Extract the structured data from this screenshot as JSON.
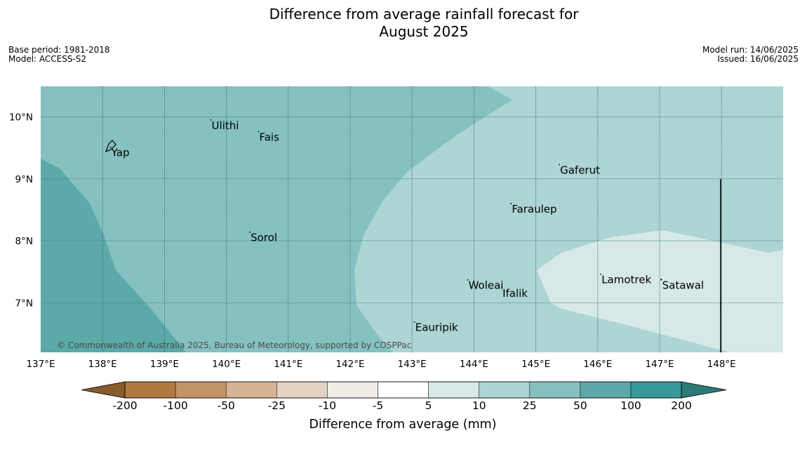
{
  "title_line1": "Difference from average rainfall forecast for",
  "title_line2": "August 2025",
  "meta_left": {
    "base_period": "Base period: 1981-2018",
    "model": "Model: ACCESS-S2"
  },
  "meta_right": {
    "model_run": "Model run: 14/06/2025",
    "issued": "Issued: 16/06/2025"
  },
  "map": {
    "lat_labels": [
      "10°N",
      "9°N",
      "8°N",
      "7°N"
    ],
    "lon_labels": [
      "137°E",
      "138°E",
      "139°E",
      "140°E",
      "141°E",
      "142°E",
      "143°E",
      "144°E",
      "145°E",
      "146°E",
      "147°E",
      "148°E"
    ],
    "places": [
      {
        "name": "Ulithi",
        "lon": 139.75,
        "lat": 9.95
      },
      {
        "name": "Fais",
        "lon": 140.52,
        "lat": 9.76
      },
      {
        "name": "Yap",
        "lon": 138.13,
        "lat": 9.51
      },
      {
        "name": "Gaferut",
        "lon": 145.38,
        "lat": 9.23
      },
      {
        "name": "Faraulep",
        "lon": 144.6,
        "lat": 8.6
      },
      {
        "name": "Sorol",
        "lon": 140.38,
        "lat": 8.14
      },
      {
        "name": "Lamotrek",
        "lon": 146.05,
        "lat": 7.46
      },
      {
        "name": "Woleai",
        "lon": 143.9,
        "lat": 7.37
      },
      {
        "name": "Ifalik",
        "lon": 144.45,
        "lat": 7.24
      },
      {
        "name": "Satawal",
        "lon": 147.03,
        "lat": 7.37
      },
      {
        "name": "Eauripik",
        "lon": 143.04,
        "lat": 6.69
      }
    ],
    "copyright": "© Commonwealth of Australia 2025, Bureau of Meteorology, supported by COSPPac"
  },
  "colorbar": {
    "labels": [
      "-200",
      "-100",
      "-50",
      "-25",
      "-10",
      "-5",
      "5",
      "10",
      "25",
      "50",
      "100",
      "200"
    ],
    "colors": [
      "#8a5a2b",
      "#b07940",
      "#c39365",
      "#d5b393",
      "#e5d2c2",
      "#f0ece6",
      "#ffffff",
      "#d6e8e7",
      "#acd5d4",
      "#85c1c0",
      "#5ba9a8",
      "#38999a",
      "#2b7a78"
    ],
    "title": "Difference from average (mm)"
  },
  "chart_data": {
    "type": "heatmap",
    "title": "Difference from average rainfall forecast for August 2025",
    "xlabel": "",
    "ylabel": "",
    "xlim": [
      137.0,
      149.0
    ],
    "ylim": [
      6.2,
      10.5
    ],
    "x_unit": "°E",
    "y_unit": "°N",
    "legend": "bottom colorbar",
    "grid": true,
    "bins_mm": [
      -200,
      -100,
      -50,
      -25,
      -10,
      -5,
      5,
      10,
      25,
      50,
      100,
      200
    ],
    "regions": [
      {
        "class": "50 to 100",
        "coverage": "west of 138°E"
      },
      {
        "class": "25 to 50",
        "coverage": "central and northern band"
      },
      {
        "class": "10 to 25",
        "coverage": "central east"
      },
      {
        "class": "5 to 10",
        "coverage": "south-east"
      }
    ]
  }
}
